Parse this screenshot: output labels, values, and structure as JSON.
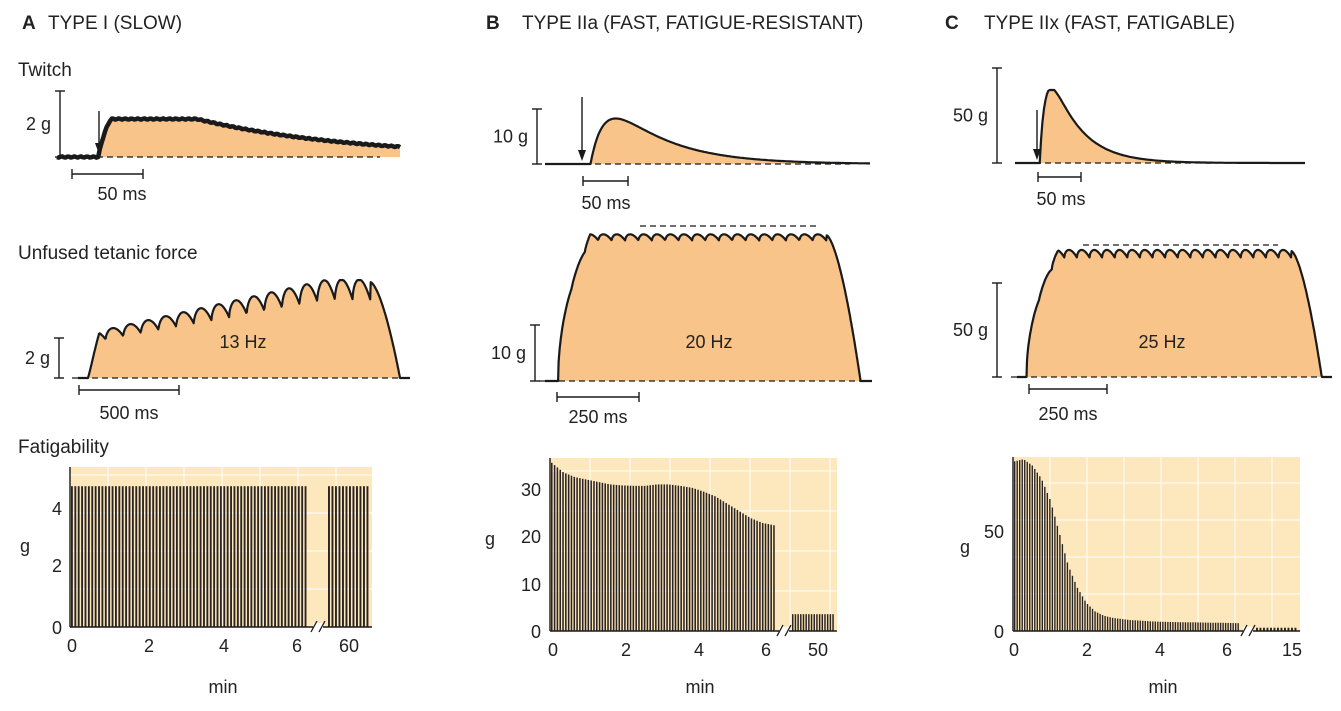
{
  "panels": [
    {
      "letter": "A",
      "title": "TYPE I (SLOW)",
      "twitch": {
        "scale_label": "2 g",
        "time_label": "50 ms"
      },
      "tetanic": {
        "scale_label": "2 g",
        "time_label": "500 ms",
        "frequency_label": "13 Hz"
      }
    },
    {
      "letter": "B",
      "title": "TYPE IIa (FAST, FATIGUE-RESISTANT)",
      "twitch": {
        "scale_label": "10 g",
        "time_label": "50 ms"
      },
      "tetanic": {
        "scale_label": "10 g",
        "time_label": "250 ms",
        "frequency_label": "20 Hz"
      }
    },
    {
      "letter": "C",
      "title": "TYPE IIx (FAST, FATIGABLE)",
      "twitch": {
        "scale_label": "50 g",
        "time_label": "50 ms"
      },
      "tetanic": {
        "scale_label": "50 g",
        "time_label": "250 ms",
        "frequency_label": "25 Hz"
      }
    }
  ],
  "row_labels": {
    "twitch": "Twitch",
    "tetanic": "Unfused tetanic force",
    "fatigue": "Fatigability"
  },
  "colors": {
    "fill": "#f9c48a",
    "plot_bg": "#fde7bd",
    "grid": "#ffffff",
    "ink": "#1a1a1a"
  },
  "chart_data": [
    {
      "type": "bar",
      "panel": "A",
      "xlabel": "min",
      "ylabel": "g",
      "ylim": [
        0,
        5
      ],
      "yticks": [
        0,
        2,
        4
      ],
      "xticks": [
        "0",
        "2",
        "4",
        "6",
        "60"
      ],
      "axis_break": true,
      "grid": true,
      "segments": [
        {
          "x_start": 0,
          "x_end": 6.2,
          "bars": 70,
          "values": [
            4.4
          ]
        },
        {
          "x_start": 58.5,
          "x_end": 65,
          "bars": 12,
          "values": [
            4.4
          ]
        }
      ]
    },
    {
      "type": "bar",
      "panel": "B",
      "xlabel": "min",
      "ylabel": "g",
      "ylim": [
        0,
        36
      ],
      "yticks": [
        0,
        10,
        20,
        30
      ],
      "xticks": [
        "0",
        "2",
        "4",
        "6",
        "50"
      ],
      "axis_break": true,
      "grid": true,
      "segments": [
        {
          "x_start": 0,
          "x_end": 6.2,
          "bars": 80,
          "values": [
            35,
            33,
            32,
            31.5,
            31,
            30.5,
            30.3,
            30.2,
            30.2,
            30.5,
            30.5,
            30.2,
            29.8,
            29,
            28,
            26.5,
            25,
            23.5,
            22.5,
            22
          ]
        },
        {
          "x_start": 44,
          "x_end": 52,
          "bars": 16,
          "values": [
            3.5
          ]
        }
      ]
    },
    {
      "type": "bar",
      "panel": "C",
      "xlabel": "min",
      "ylabel": "g",
      "ylim": [
        0,
        80
      ],
      "yticks": [
        0,
        50
      ],
      "xticks": [
        "0",
        "2",
        "4",
        "6",
        "15"
      ],
      "axis_break": true,
      "grid": true,
      "segments": [
        {
          "x_start": 0,
          "x_end": 6.5,
          "bars": 90,
          "values": [
            78,
            79,
            76,
            70,
            60,
            45,
            30,
            20,
            13,
            9,
            7,
            6,
            5.5,
            5,
            4.8,
            4.5,
            4.3,
            4.2,
            4.1,
            4,
            4,
            3.9,
            3.8,
            3.8,
            3.7,
            3.6
          ]
        },
        {
          "x_start": 13,
          "x_end": 15,
          "bars": 12,
          "values": [
            1.5
          ]
        }
      ]
    }
  ]
}
